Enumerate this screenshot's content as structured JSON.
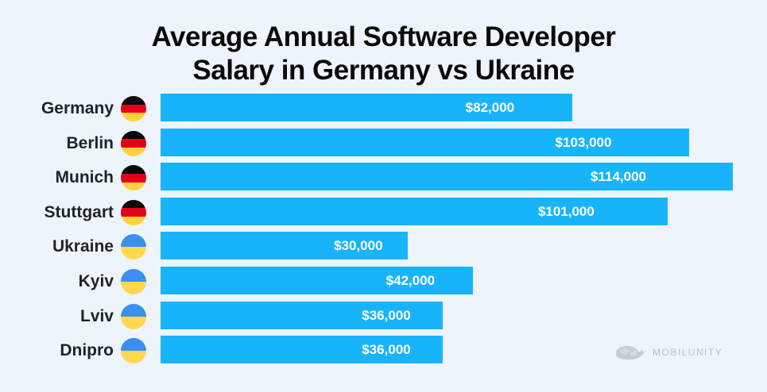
{
  "chart_data": {
    "type": "bar",
    "orientation": "horizontal",
    "title": "Average Annual Software Developer Salary in Germany vs Ukraine",
    "title_lines": [
      "Average Annual Software Developer",
      "Salary in Germany vs Ukraine"
    ],
    "xlabel": "",
    "ylabel": "",
    "grid": false,
    "categories": [
      "Germany",
      "Berlin",
      "Munich",
      "Stuttgart",
      "Ukraine",
      "Kyiv",
      "Lviv",
      "Dnipro"
    ],
    "values": [
      82000,
      103000,
      114000,
      101000,
      30000,
      42000,
      36000,
      36000
    ],
    "value_labels": [
      "$82,000",
      "$103,000",
      "$114,000",
      "$101,000",
      "$30,000",
      "$42,000",
      "$36,000",
      "$36,000"
    ],
    "flags": [
      "germany",
      "germany",
      "germany",
      "germany",
      "ukraine",
      "ukraine",
      "ukraine",
      "ukraine"
    ],
    "bar_color": "#18b4fb",
    "unit": "USD"
  },
  "flag_colors": {
    "germany": [
      "#0a0a0a",
      "#e3001b",
      "#ffd23f"
    ],
    "ukraine": [
      "#3a8ff0",
      "#ffd84d"
    ]
  },
  "watermark": "MOBILUNITY"
}
